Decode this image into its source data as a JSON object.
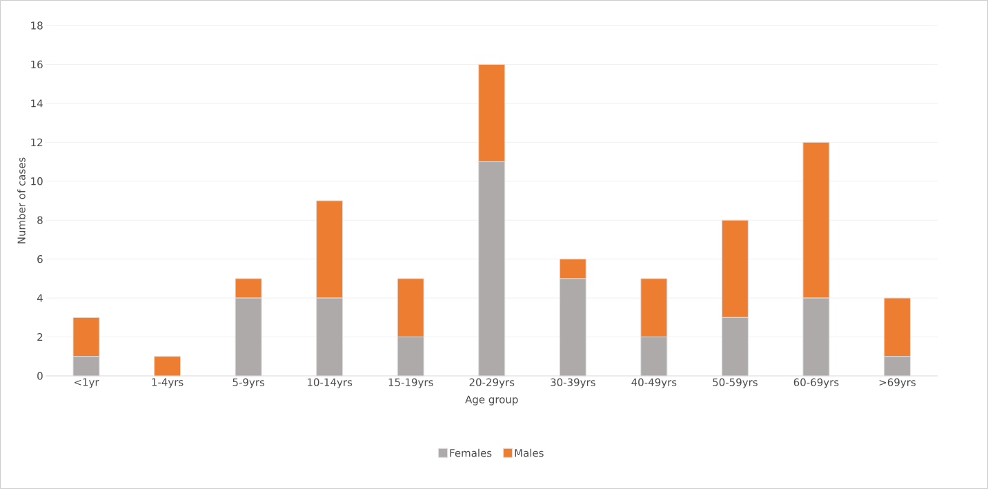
{
  "chart_data": {
    "type": "bar",
    "stacked": true,
    "xlabel": "Age group",
    "ylabel": "Number of cases",
    "categories": [
      "<1yr",
      "1-4yrs",
      "5-9yrs",
      "10-14yrs",
      "15-19yrs",
      "20-29yrs",
      "30-39yrs",
      "40-49yrs",
      "50-59yrs",
      "60-69yrs",
      ">69yrs"
    ],
    "series": [
      {
        "name": "Females",
        "color": "#aeaaaa",
        "values": [
          1,
          0,
          4,
          4,
          2,
          11,
          5,
          2,
          3,
          4,
          1
        ]
      },
      {
        "name": "Males",
        "color": "#ed7d31",
        "values": [
          2,
          1,
          1,
          5,
          3,
          5,
          1,
          3,
          5,
          8,
          3
        ]
      }
    ],
    "ylim": [
      0,
      18
    ],
    "yticks": [
      0,
      2,
      4,
      6,
      8,
      10,
      12,
      14,
      16,
      18
    ],
    "grid": "y",
    "legend": "bottom"
  }
}
